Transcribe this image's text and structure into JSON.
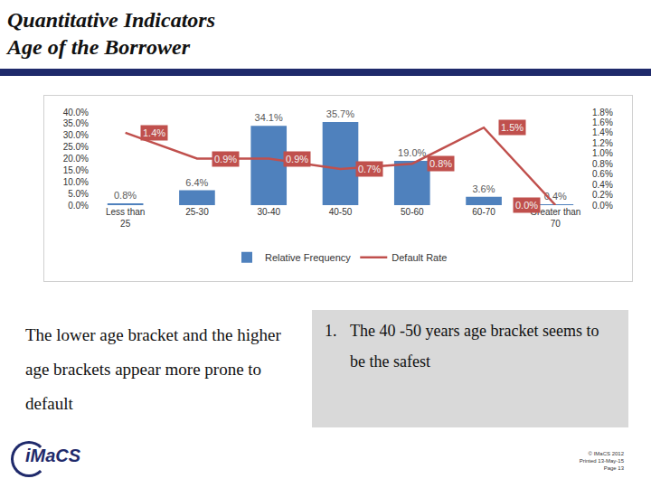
{
  "header": {
    "title_lines": [
      "Quantitative Indicators",
      "Age of the Borrower"
    ]
  },
  "chart_data": {
    "type": "bar",
    "categories": [
      "Less than 25",
      "25-30",
      "30-40",
      "40-50",
      "50-60",
      "60-70",
      "Greater than 70"
    ],
    "series": [
      {
        "name": "Relative Frequency",
        "type": "bar",
        "color": "#4f81bd",
        "values": [
          0.8,
          6.4,
          34.1,
          35.7,
          19.0,
          3.6,
          0.4
        ],
        "value_labels": [
          "0.8%",
          "6.4%",
          "34.1%",
          "35.7%",
          "19.0%",
          "3.6%",
          "0.4%"
        ]
      },
      {
        "name": "Default Rate",
        "type": "line",
        "axis": "y2",
        "color": "#c0504d",
        "values": [
          1.4,
          0.9,
          0.9,
          0.7,
          0.8,
          1.5,
          0.0
        ],
        "value_labels": [
          "1.4%",
          "0.9%",
          "0.9%",
          "0.7%",
          "0.8%",
          "1.5%",
          "0.0%"
        ]
      }
    ],
    "ylim": [
      0,
      40
    ],
    "yticks": [
      {
        "value": 0,
        "label": "0.0%"
      },
      {
        "value": 5,
        "label": "5.0%"
      },
      {
        "value": 10,
        "label": "10.0%"
      },
      {
        "value": 15,
        "label": "15.0%"
      },
      {
        "value": 20,
        "label": "20.0%"
      },
      {
        "value": 25,
        "label": "25.0%"
      },
      {
        "value": 30,
        "label": "30.0%"
      },
      {
        "value": 35,
        "label": "35.0%"
      },
      {
        "value": 40,
        "label": "40.0%"
      }
    ],
    "y2lim": [
      0,
      1.8
    ],
    "y2ticks": [
      {
        "value": 0,
        "label": "0.0%"
      },
      {
        "value": 0.2,
        "label": "0.2%"
      },
      {
        "value": 0.4,
        "label": "0.4%"
      },
      {
        "value": 0.6,
        "label": "0.6%"
      },
      {
        "value": 0.8,
        "label": "0.8%"
      },
      {
        "value": 1.0,
        "label": "1.0%"
      },
      {
        "value": 1.2,
        "label": "1.2%"
      },
      {
        "value": 1.4,
        "label": "1.4%"
      },
      {
        "value": 1.6,
        "label": "1.6%"
      },
      {
        "value": 1.8,
        "label": "1.8%"
      }
    ],
    "data_labels": true,
    "legend": "bottom",
    "grid": false
  },
  "text_left": "The lower age bracket and the higher age brackets appear more prone to default",
  "text_right": {
    "number": "1.",
    "text": "The 40 -50 years age bracket seems to be the safest"
  },
  "footer": {
    "logo": "iMaCS",
    "lines": [
      "© IMaCS 2012",
      "Printed 13-May-15",
      "Page 13"
    ]
  }
}
